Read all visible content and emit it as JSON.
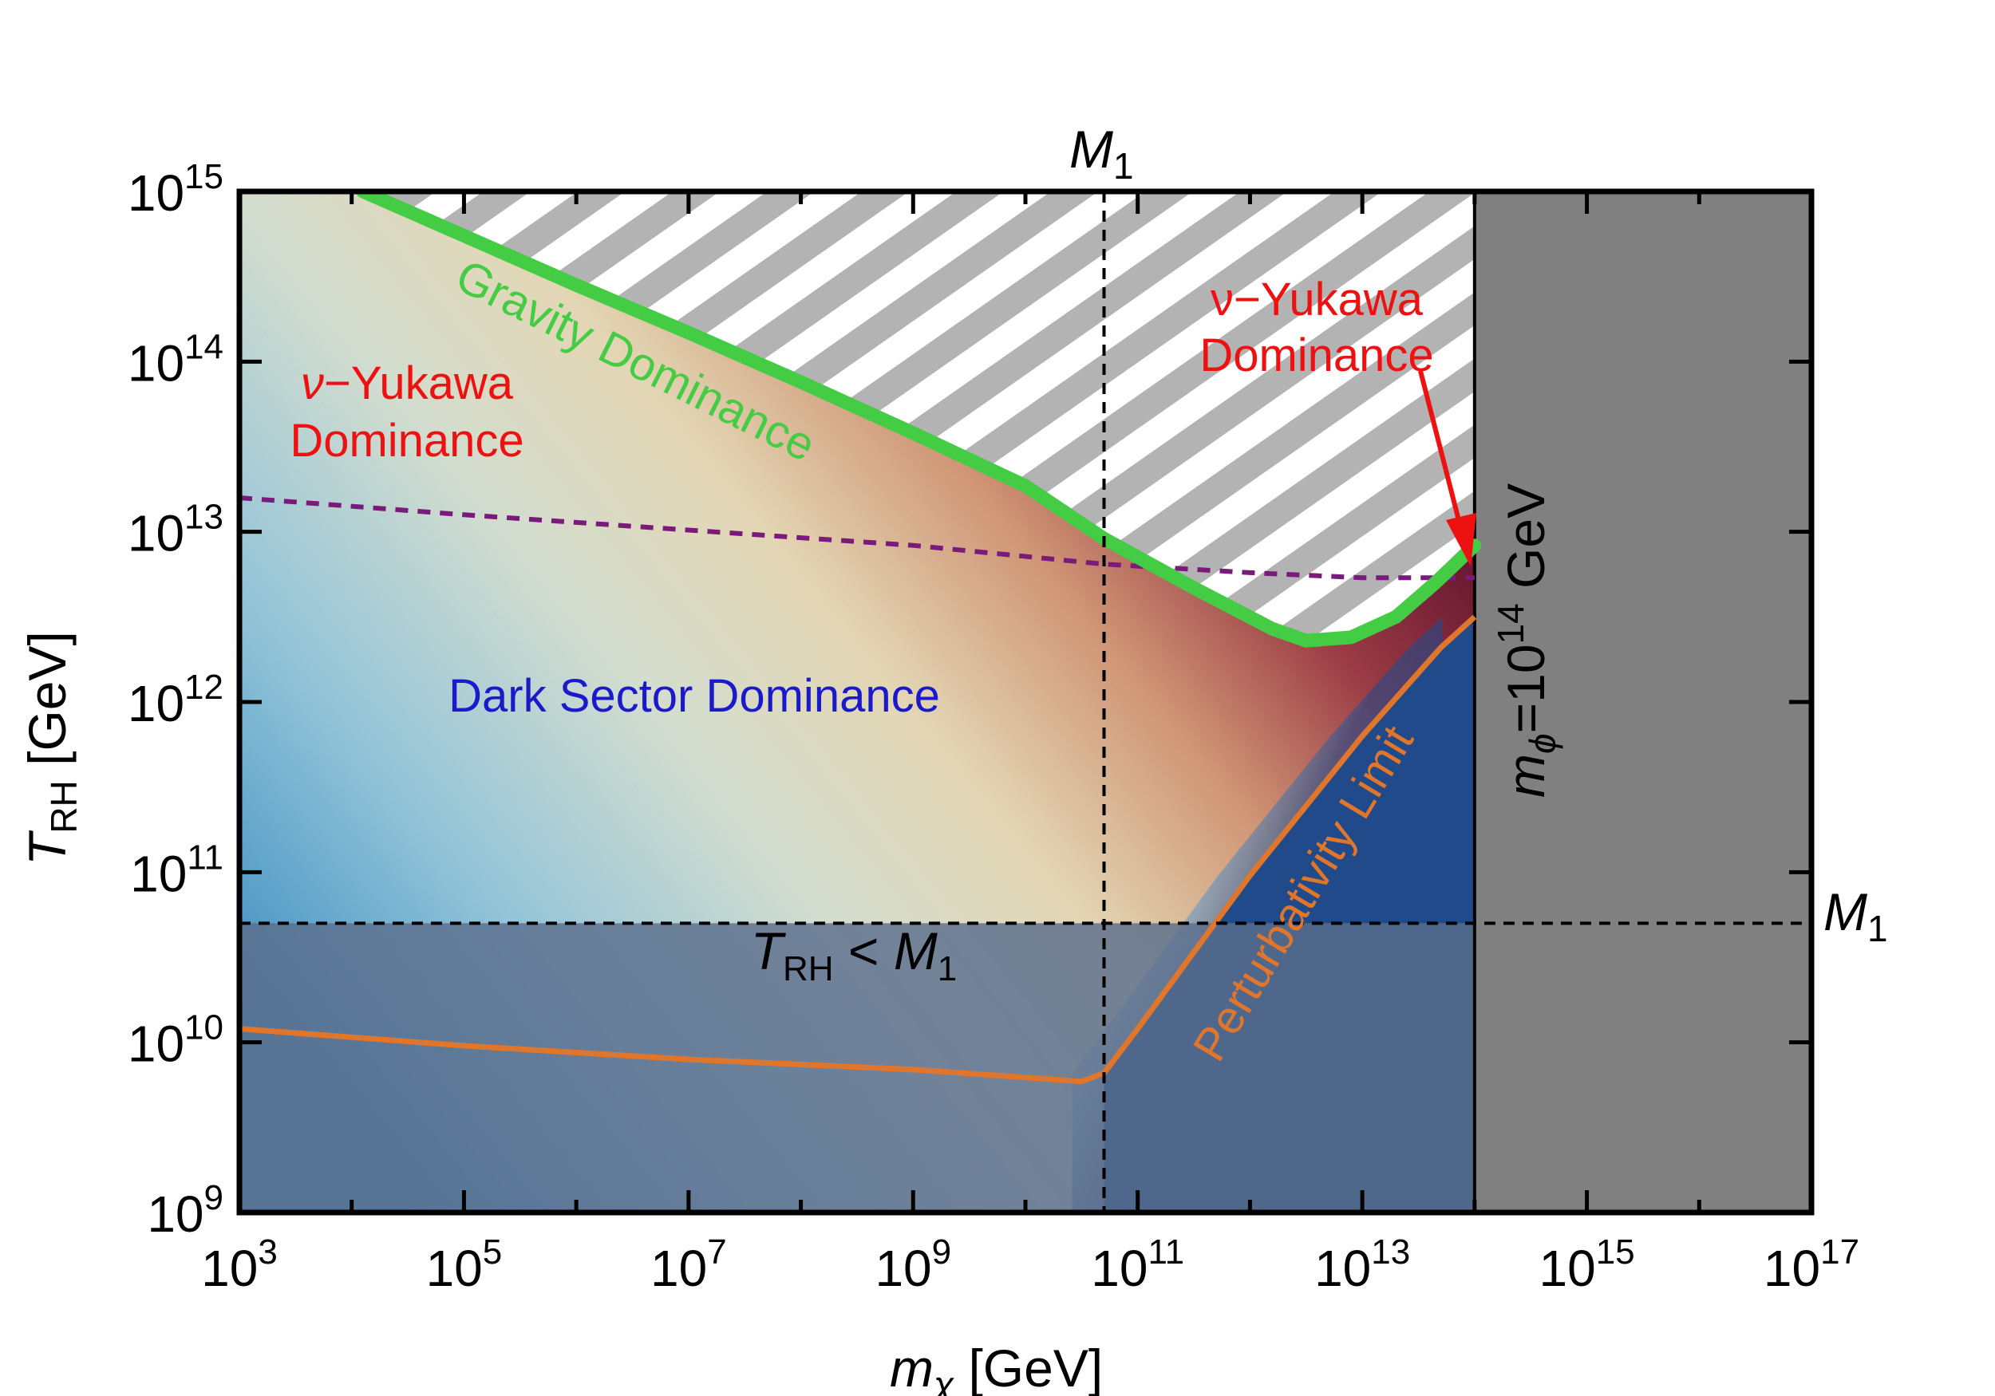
{
  "chart_data": {
    "type": "area",
    "xlabel": "mχ [GeV]",
    "xlabel_symbol": "m",
    "xlabel_sub": "χ",
    "xlabel_unit": " [GeV]",
    "ylabel_symbol": "T",
    "ylabel_sub": "RH",
    "ylabel_unit": " [GeV]",
    "xscale": "log10",
    "yscale": "log10",
    "xlim_exp": [
      3,
      17
    ],
    "ylim_exp": [
      9,
      15
    ],
    "x_ticks": [
      {
        "base": "10",
        "exp": "3",
        "value": 3
      },
      {
        "base": "10",
        "exp": "5",
        "value": 5
      },
      {
        "base": "10",
        "exp": "7",
        "value": 7
      },
      {
        "base": "10",
        "exp": "9",
        "value": 9
      },
      {
        "base": "10",
        "exp": "11",
        "value": 11
      },
      {
        "base": "10",
        "exp": "13",
        "value": 13
      },
      {
        "base": "10",
        "exp": "15",
        "value": 15
      },
      {
        "base": "10",
        "exp": "17",
        "value": 17
      }
    ],
    "y_ticks": [
      {
        "base": "10",
        "exp": "9",
        "value": 9
      },
      {
        "base": "10",
        "exp": "10",
        "value": 10
      },
      {
        "base": "10",
        "exp": "11",
        "value": 11
      },
      {
        "base": "10",
        "exp": "12",
        "value": 12
      },
      {
        "base": "10",
        "exp": "13",
        "value": 13
      },
      {
        "base": "10",
        "exp": "14",
        "value": 14
      },
      {
        "base": "10",
        "exp": "15",
        "value": 15
      }
    ],
    "M1_log10": 10.7,
    "mphi_log10": 14,
    "series": [
      {
        "name": "Gravity Dominance boundary",
        "color": "#44cc44",
        "x_log10": [
          4.1,
          5,
          6,
          7,
          8,
          9,
          10,
          10.7,
          11.5,
          12.2,
          12.5,
          12.9,
          13.3,
          13.65,
          14
        ],
        "y_log10": [
          15,
          14.74,
          14.45,
          14.17,
          13.88,
          13.58,
          13.27,
          12.96,
          12.67,
          12.43,
          12.36,
          12.38,
          12.5,
          12.7,
          12.92
        ]
      },
      {
        "name": "Perturbativity Limit",
        "color": "#e0762c",
        "x_log10": [
          3,
          5,
          7,
          9,
          10.5,
          10.7,
          11,
          12,
          13,
          13.7,
          14
        ],
        "y_log10": [
          10.08,
          9.98,
          9.9,
          9.84,
          9.77,
          9.82,
          10.08,
          10.98,
          11.8,
          12.32,
          12.5
        ]
      },
      {
        "name": "Dark Sector / ν-Yukawa transition",
        "color": "#7a1a7a",
        "x_log10": [
          3,
          5,
          7,
          9,
          10.7,
          12,
          13,
          14
        ],
        "y_log10": [
          13.2,
          13.1,
          13.01,
          12.92,
          12.81,
          12.76,
          12.73,
          12.73
        ]
      }
    ],
    "labels": {
      "gravity": "Gravity Dominance",
      "yukawa_left_1": "ν−Yukawa",
      "yukawa_left_2": "Dominance",
      "yukawa_right_1": "ν−Yukawa",
      "yukawa_right_2": "Dominance",
      "dark_sector": "Dark Sector Dominance",
      "perturbativity": "Perturbativity Limit",
      "trh_lt_m1_T": "T",
      "trh_lt_m1_sub": "RH",
      "trh_lt_m1_rest": " < ",
      "trh_lt_m1_M": "M",
      "trh_lt_m1_Msub": "1",
      "m1_top": "M",
      "m1_top_sub": "1",
      "m1_right": "M",
      "m1_right_sub": "1",
      "mphi_m": "m",
      "mphi_sub": "ϕ",
      "mphi_eq": "=10",
      "mphi_exp": "14",
      "mphi_unit": " GeV"
    },
    "colors": {
      "yukawa_text": "#ee1111",
      "dark_text": "#1a1acc",
      "gravity_line": "#44cc44",
      "perturbativity_line": "#e0762c",
      "purple_dash": "#7a1a7a",
      "excluded_gray": "#808080",
      "hatch_gray": "#b3b3b3",
      "trh_shade": "#5b6e8c",
      "deep_blue": "#204a8a"
    }
  }
}
